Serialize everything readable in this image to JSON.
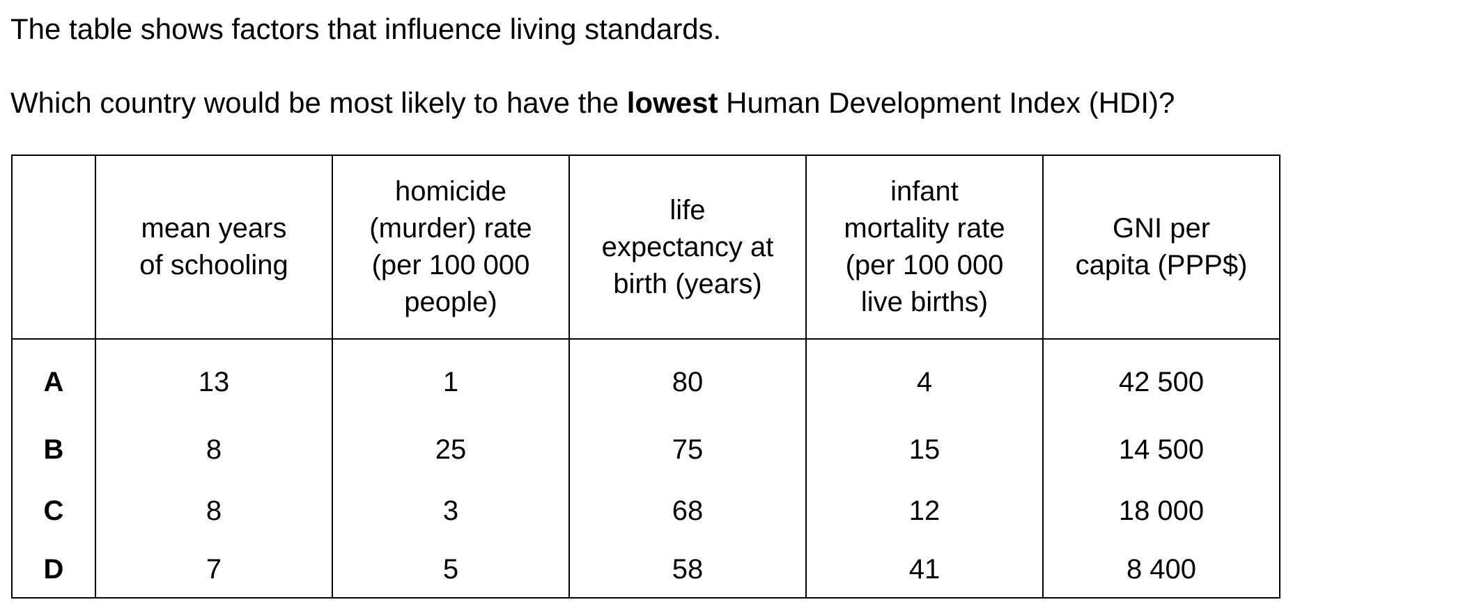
{
  "intro_text": "The table shows factors that influence living standards.",
  "question": {
    "before": "Which country would be most likely to have the ",
    "bold": "lowest",
    "after": " Human Development Index (HDI)?"
  },
  "table": {
    "headers": [
      "",
      "mean years of schooling",
      "homicide (murder) rate (per 100 000 people)",
      "life expectancy at birth (years)",
      "infant mortality rate (per 100 000 live births)",
      "GNI per capita (PPP$)"
    ],
    "header_lines": [
      [],
      [
        "mean years",
        "of schooling"
      ],
      [
        "homicide",
        "(murder) rate",
        "(per 100 000",
        "people)"
      ],
      [
        "life",
        "expectancy at",
        "birth (years)"
      ],
      [
        "infant",
        "mortality rate",
        "(per 100 000",
        "live births)"
      ],
      [
        "GNI per",
        "capita (PPP$)"
      ]
    ],
    "rows": [
      {
        "label": "A",
        "schooling": "13",
        "homicide": "1",
        "life_expectancy": "80",
        "infant_mortality": "4",
        "gni": "42 500"
      },
      {
        "label": "B",
        "schooling": "8",
        "homicide": "25",
        "life_expectancy": "75",
        "infant_mortality": "15",
        "gni": "14 500"
      },
      {
        "label": "C",
        "schooling": "8",
        "homicide": "3",
        "life_expectancy": "68",
        "infant_mortality": "12",
        "gni": "18 000"
      },
      {
        "label": "D",
        "schooling": "7",
        "homicide": "5",
        "life_expectancy": "58",
        "infant_mortality": "41",
        "gni": "8 400"
      }
    ]
  }
}
